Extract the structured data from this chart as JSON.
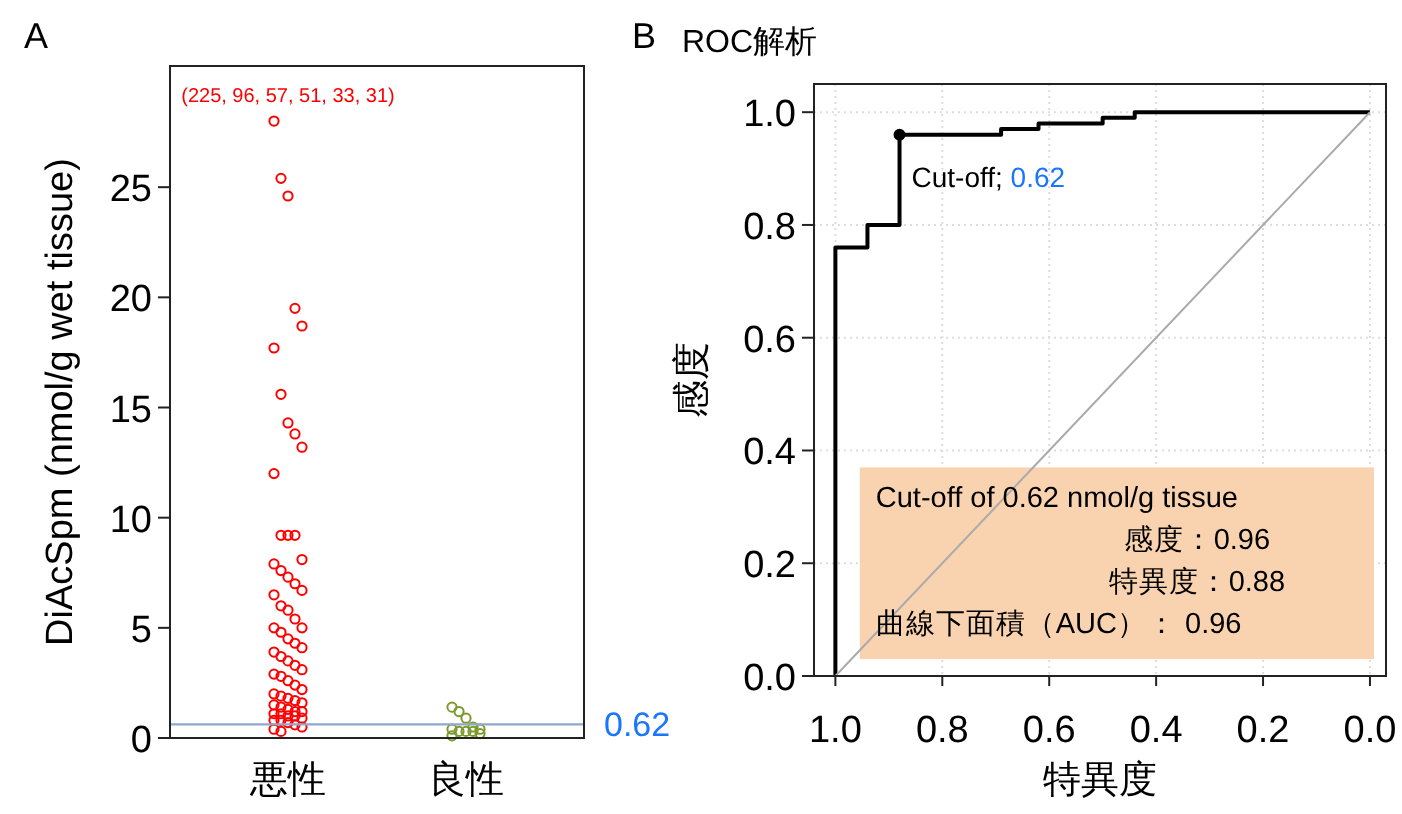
{
  "chart_data": [
    {
      "type": "scatter",
      "title": "A",
      "categories": [
        "悪性",
        "良性"
      ],
      "ylabel": "DiAcSpm (nmol/g wet tissue)",
      "ylim": [
        0,
        30.5
      ],
      "yticks": [
        0,
        5,
        10,
        15,
        20,
        25
      ],
      "marker": "circle",
      "grid": false,
      "series": [
        {
          "color": "#ff0000",
          "x": [
            "悪性",
            "悪性",
            "悪性",
            "悪性",
            "悪性",
            "悪性",
            "悪性",
            "悪性",
            "悪性",
            "悪性",
            "悪性",
            "悪性",
            "悪性",
            "悪性",
            "悪性",
            "悪性",
            "悪性",
            "悪性",
            "悪性",
            "悪性",
            "悪性",
            "悪性",
            "悪性",
            "悪性",
            "悪性",
            "悪性",
            "悪性",
            "悪性",
            "悪性",
            "悪性",
            "悪性",
            "悪性",
            "悪性",
            "悪性",
            "悪性",
            "悪性",
            "悪性",
            "悪性",
            "悪性",
            "悪性",
            "悪性",
            "悪性",
            "悪性",
            "悪性",
            "悪性",
            "悪性",
            "悪性",
            "悪性",
            "悪性",
            "悪性",
            "悪性",
            "悪性",
            "悪性",
            "悪性",
            "悪性",
            "悪性",
            "悪性",
            "悪性",
            "悪性",
            "悪性",
            "悪性",
            "悪性"
          ],
          "values": [
            28,
            25.4,
            24.6,
            19.5,
            18.7,
            17.7,
            15.6,
            14.3,
            13.8,
            13.2,
            12.0,
            9.2,
            9.2,
            9.2,
            8.1,
            7.9,
            7.6,
            7.3,
            7.0,
            6.7,
            6.5,
            6.0,
            5.8,
            5.4,
            5.0,
            5.0,
            4.8,
            4.5,
            4.3,
            4.1,
            3.9,
            3.7,
            3.5,
            3.3,
            3.1,
            2.9,
            2.8,
            2.6,
            2.4,
            2.2,
            2.0,
            1.9,
            1.8,
            1.7,
            1.6,
            1.5,
            1.4,
            1.3,
            1.2,
            1.2,
            1.1,
            1.1,
            1.0,
            1.0,
            0.9,
            0.8,
            0.8,
            0.7,
            0.6,
            0.5,
            0.4,
            0.3
          ]
        },
        {
          "color": "#7a9a2a",
          "x": [
            "良性",
            "良性",
            "良性",
            "良性",
            "良性",
            "良性",
            "良性",
            "良性",
            "良性",
            "良性",
            "良性"
          ],
          "values": [
            1.4,
            1.2,
            0.9,
            0.5,
            0.4,
            0.4,
            0.3,
            0.3,
            0.3,
            0.2,
            0.1
          ]
        }
      ],
      "ref_lines": [
        {
          "axis": "y",
          "value": 0.62,
          "label": "0.62",
          "color": "#8fa8cc"
        }
      ],
      "annotations": [
        "(225, 96, 57, 51, 33, 31)"
      ]
    },
    {
      "type": "line",
      "title": "B",
      "subtitle": "ROC解析",
      "xlabel": "特異度",
      "ylabel": "感度",
      "xlim": [
        1.04,
        -0.03
      ],
      "ylim": [
        0,
        1.05
      ],
      "xticks": [
        {
          "value": 1,
          "label": "1.0"
        },
        {
          "value": 0.8,
          "label": "0.8"
        },
        {
          "value": 0.6,
          "label": "0.6"
        },
        {
          "value": 0.4,
          "label": "0.4"
        },
        {
          "value": 0.2,
          "label": "0.2"
        },
        {
          "value": 0,
          "label": "0.0"
        }
      ],
      "yticks": [
        {
          "value": 0,
          "label": "0.0"
        },
        {
          "value": 0.2,
          "label": "0.2"
        },
        {
          "value": 0.4,
          "label": "0.4"
        },
        {
          "value": 0.6,
          "label": "0.6"
        },
        {
          "value": 0.8,
          "label": "0.8"
        },
        {
          "value": 1,
          "label": "1.0"
        }
      ],
      "grid": true,
      "line_style": "solid",
      "series": [
        {
          "color": "#000000",
          "marker": "none",
          "x": [
            1,
            1,
            0.94,
            0.94,
            0.88,
            0.88,
            0.69,
            0.69,
            0.62,
            0.62,
            0.5,
            0.5,
            0.44,
            0.44,
            0
          ],
          "values": [
            0,
            0.76,
            0.76,
            0.8,
            0.8,
            0.96,
            0.96,
            0.97,
            0.97,
            0.98,
            0.98,
            0.99,
            0.99,
            1,
            1
          ]
        },
        {
          "type": "line",
          "color": "#aaaaaa",
          "marker": "none",
          "x": [
            1,
            0
          ],
          "values": [
            0,
            1
          ]
        },
        {
          "type": "scatter",
          "color": "#000000",
          "marker": "circle",
          "x": [
            0.88
          ],
          "values": [
            0.96
          ]
        }
      ],
      "annotations": [
        {
          "text": "Cut-off; 0.62",
          "x": 0.88,
          "y": 0.96
        },
        "Cut-off of 0.62 nmol/g tissue",
        "感度：0.96",
        "特異度：0.88",
        "曲線下面積（AUC）： 0.96"
      ]
    }
  ]
}
